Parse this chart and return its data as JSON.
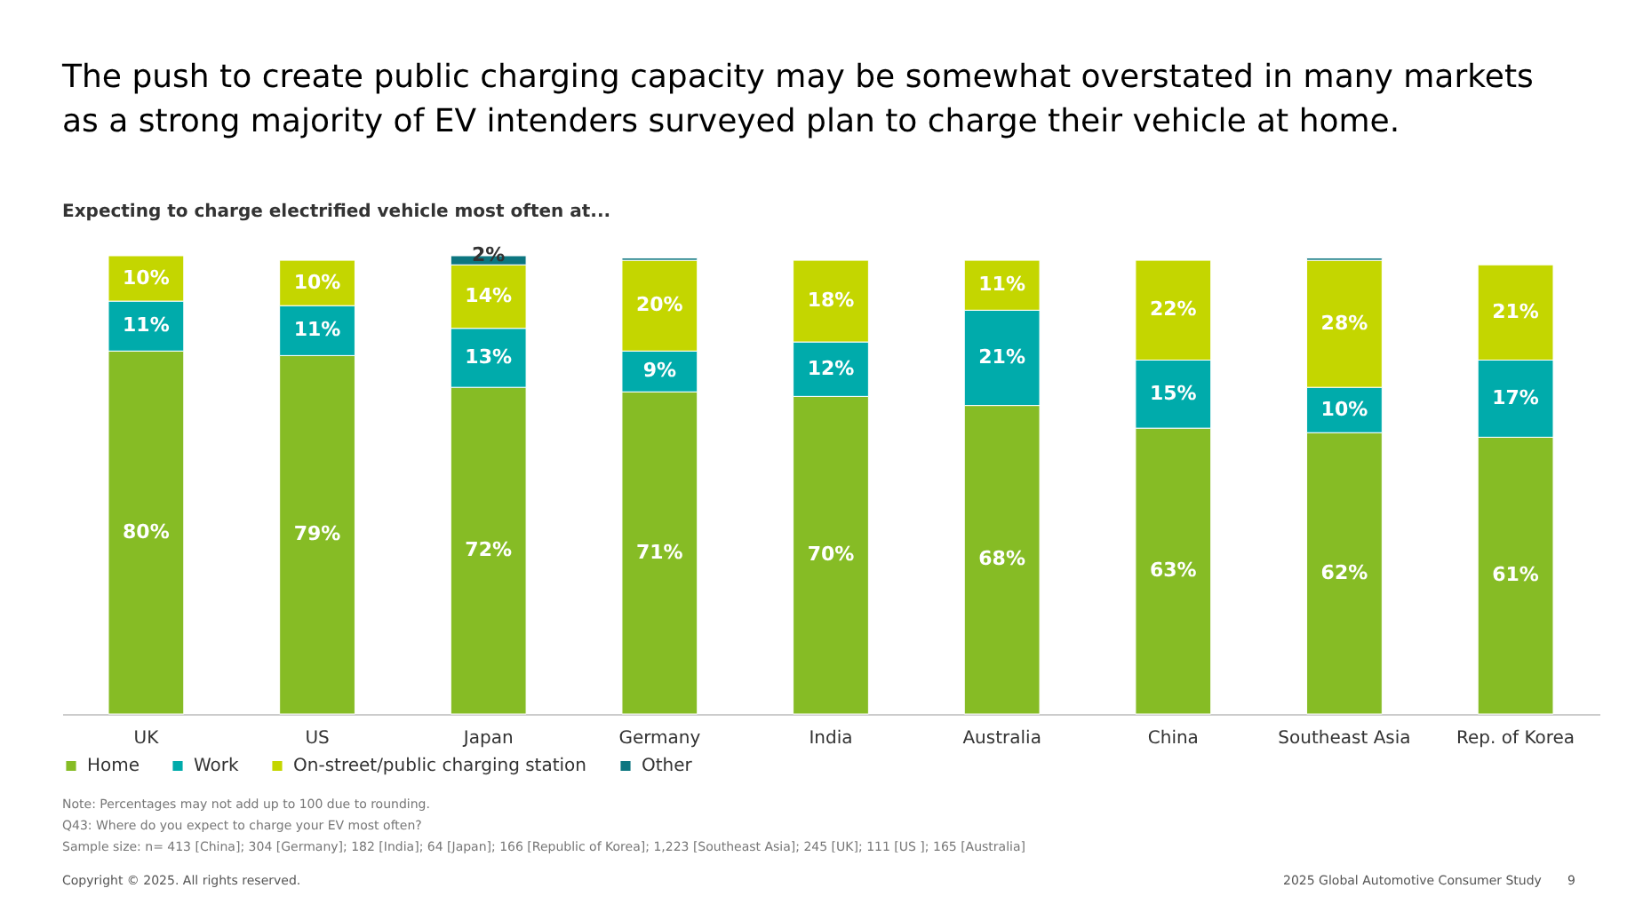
{
  "chart_data": {
    "type": "bar",
    "stacked": true,
    "title": "The push to create public charging capacity may be somewhat overstated in many markets\nas a strong majority of EV intenders surveyed plan to charge their vehicle at home.",
    "subtitle": "Expecting to charge electrified vehicle most often at...",
    "categories": [
      "UK",
      "US",
      "Japan",
      "Germany",
      "India",
      "Australia",
      "China",
      "Southeast Asia",
      "Rep. of Korea"
    ],
    "series": [
      {
        "name": "Home",
        "color": "#86bc25",
        "values": [
          80,
          79,
          72,
          71,
          70,
          68,
          63,
          62,
          61
        ],
        "value_labels": [
          "80%",
          "79%",
          "72%",
          "71%",
          "70%",
          "68%",
          "63%",
          "62%",
          "61%"
        ]
      },
      {
        "name": "Work",
        "color": "#00abab",
        "values": [
          11,
          11,
          13,
          9,
          12,
          21,
          15,
          10,
          17
        ],
        "value_labels": [
          "11%",
          "11%",
          "13%",
          "9%",
          "12%",
          "21%",
          "15%",
          "10%",
          "17%"
        ]
      },
      {
        "name": "On-street/public charging station",
        "color": "#c4d600",
        "values": [
          10,
          10,
          14,
          20,
          18,
          11,
          22,
          28,
          21
        ],
        "value_labels": [
          "10%",
          "10%",
          "14%",
          "20%",
          "18%",
          "11%",
          "22%",
          "28%",
          "21%"
        ]
      },
      {
        "name": "Other",
        "color": "#0d7680",
        "values": [
          null,
          null,
          2,
          0.5,
          null,
          null,
          null,
          0.5,
          null
        ],
        "value_labels": [
          null,
          null,
          "2%",
          null,
          null,
          null,
          null,
          null,
          null
        ]
      }
    ],
    "legend": "bottom",
    "grid": false,
    "tick_labels": "x",
    "annotations": [
      "Note: Percentages may not add up to 100 due to rounding.",
      "Q43: Where do you expect to charge your EV most often?",
      "Sample size: n= 413 [China]; 304 [Germany]; 182 [India]; 64 [Japan]; 166 [Republic of Korea]; 1,223 [Southeast Asia]; 245 [UK]; 111 [US ]; 165 [Australia]",
      "Copyright © 2025. All rights reserved.",
      "2025 Global Automotive Consumer Study",
      "9"
    ]
  }
}
